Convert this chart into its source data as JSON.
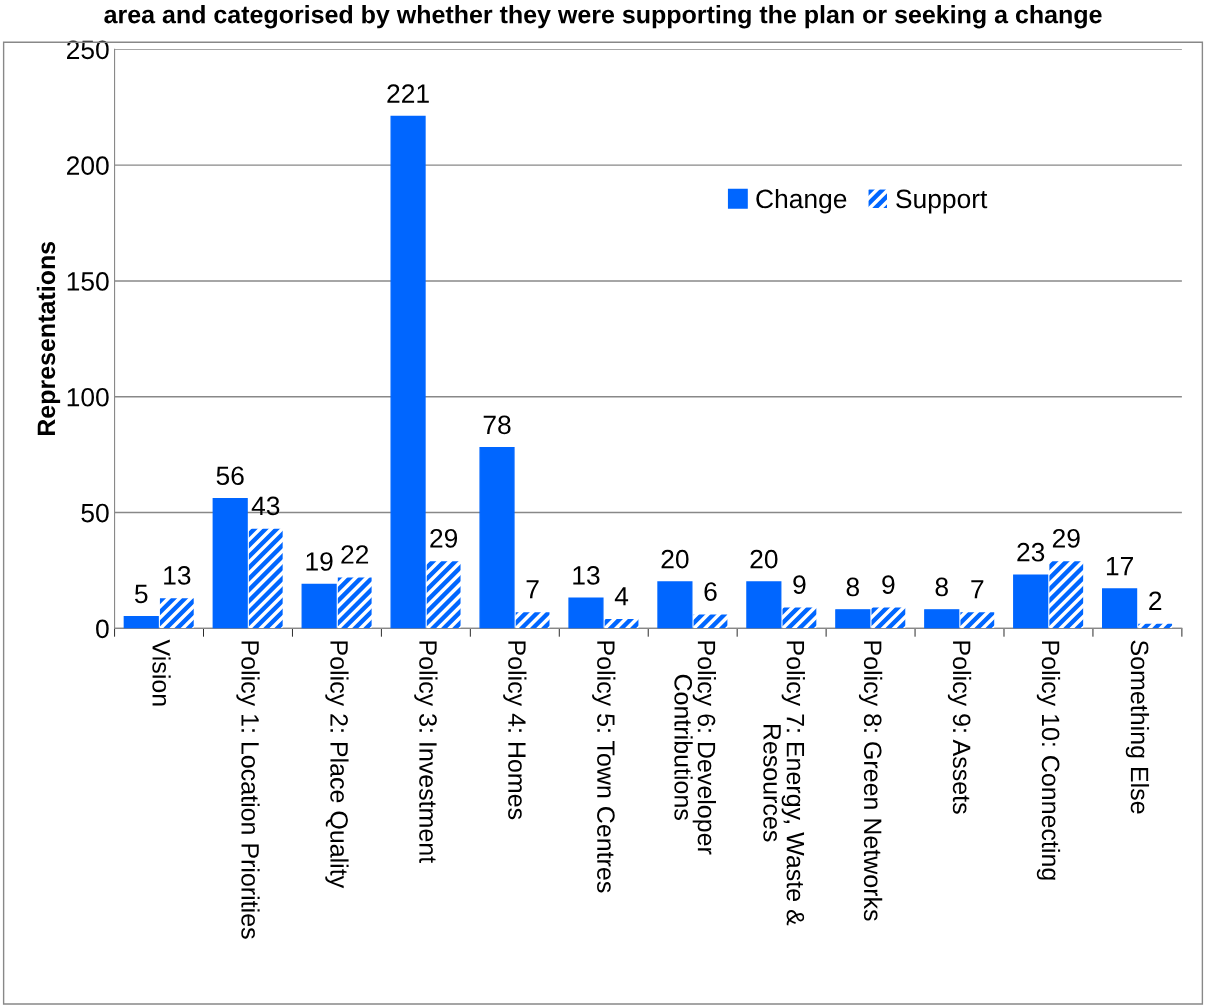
{
  "chart_data": {
    "type": "bar",
    "title": "area and categorised by whether they were supporting the plan or seeking a change",
    "ylabel": "Representations",
    "categories": [
      "Vision",
      "Policy 1: Location Priorities",
      "Policy 2: Place Quality",
      "Policy 3: Investment",
      "Policy 4: Homes",
      "Policy 5: Town Centres",
      "Policy 6: Developer\nContributions",
      "Policy 7: Energy, Waste &\nResources",
      "Policy 8: Green Networks",
      "Policy 9: Assets",
      "Policy 10: Connecting",
      "Something Else"
    ],
    "series": [
      {
        "name": "Change",
        "color": "#0066ff",
        "values": [
          5,
          56,
          19,
          221,
          78,
          13,
          20,
          20,
          8,
          8,
          23,
          17
        ]
      },
      {
        "name": "Support",
        "color": "#0066ff",
        "values": [
          13,
          43,
          22,
          29,
          7,
          4,
          6,
          9,
          9,
          7,
          29,
          2
        ]
      }
    ],
    "ylim": [
      0,
      250
    ],
    "yticks": [
      0,
      50,
      100,
      150,
      200,
      250
    ],
    "grid": "y",
    "legend": "top right",
    "data_labels": true
  }
}
